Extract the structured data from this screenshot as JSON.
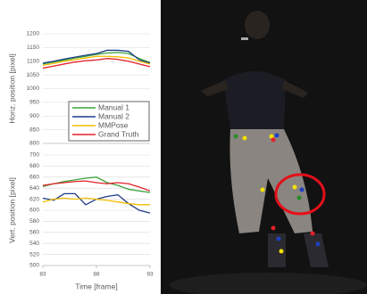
{
  "chart_data": [
    {
      "type": "line",
      "y_label": "Horiz. position [pixel]",
      "x": [
        83,
        84,
        85,
        86,
        87,
        88,
        89,
        90,
        91,
        92,
        93
      ],
      "xlim": [
        83,
        93
      ],
      "ylim": [
        800,
        1200
      ],
      "yticks": [
        800,
        850,
        900,
        950,
        1000,
        1050,
        1100,
        1150,
        1200
      ],
      "grid": true,
      "legend": "lower right",
      "series": [
        {
          "name": "Manual 1",
          "color": "#3aa43a",
          "values": [
            1090,
            1097,
            1104,
            1112,
            1118,
            1125,
            1130,
            1132,
            1128,
            1110,
            1095
          ]
        },
        {
          "name": "Manual 2",
          "color": "#1f3c88",
          "values": [
            1093,
            1100,
            1108,
            1115,
            1122,
            1128,
            1140,
            1140,
            1136,
            1105,
            1093
          ]
        },
        {
          "name": "MMPose",
          "color": "#f2bd00",
          "values": [
            1085,
            1092,
            1100,
            1106,
            1112,
            1118,
            1118,
            1116,
            1112,
            1100,
            1090
          ]
        },
        {
          "name": "Grand Truth",
          "color": "#e4202a",
          "values": [
            1075,
            1082,
            1090,
            1097,
            1102,
            1105,
            1110,
            1107,
            1100,
            1090,
            1080
          ]
        }
      ]
    },
    {
      "type": "line",
      "y_label": "Vert. position [pixel]",
      "x_label": "Time [frame]",
      "x": [
        83,
        84,
        85,
        86,
        87,
        88,
        89,
        90,
        91,
        92,
        93
      ],
      "xlim": [
        83,
        93
      ],
      "xticks": [
        83,
        88,
        93
      ],
      "ylim": [
        500,
        700
      ],
      "yticks": [
        500,
        520,
        540,
        560,
        580,
        600,
        620,
        640,
        660,
        680,
        700
      ],
      "grid": true,
      "series": [
        {
          "color": "#3aa43a",
          "values": [
            643,
            648,
            652,
            655,
            658,
            660,
            650,
            645,
            638,
            635,
            632
          ]
        },
        {
          "color": "#1f3c88",
          "values": [
            622,
            618,
            630,
            630,
            610,
            620,
            625,
            628,
            612,
            600,
            595
          ]
        },
        {
          "color": "#f2bd00",
          "values": [
            615,
            620,
            622,
            620,
            622,
            620,
            618,
            615,
            612,
            610,
            610
          ]
        },
        {
          "color": "#e4202a",
          "values": [
            645,
            648,
            650,
            652,
            653,
            650,
            648,
            650,
            648,
            642,
            635
          ]
        }
      ]
    }
  ]
}
